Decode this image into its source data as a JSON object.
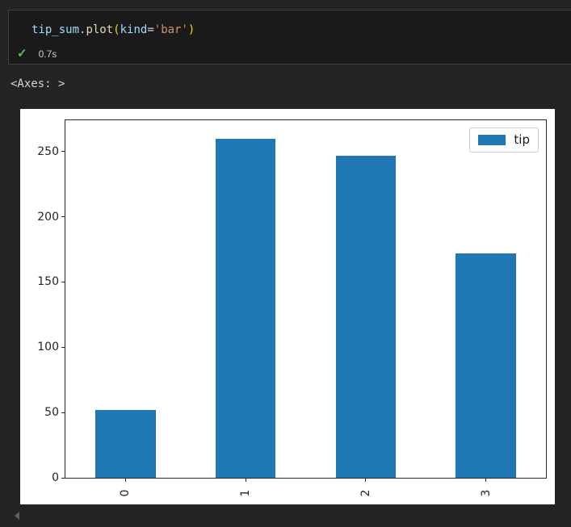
{
  "cell": {
    "code_tokens": [
      {
        "text": "tip_sum",
        "color": "#9CDCFE"
      },
      {
        "text": ".",
        "color": "#D4D4D4"
      },
      {
        "text": "plot",
        "color": "#DCDCAA"
      },
      {
        "text": "(",
        "color": "#FFD700"
      },
      {
        "text": "kind",
        "color": "#9CDCFE"
      },
      {
        "text": "=",
        "color": "#D4D4D4"
      },
      {
        "text": "'bar'",
        "color": "#CE9178"
      },
      {
        "text": ")",
        "color": "#FFD700"
      }
    ],
    "execution": {
      "check_glyph": "✓",
      "check_color": "#53c04f",
      "duration": "0.7s"
    }
  },
  "output_text": "<Axes: >",
  "chart_data": {
    "type": "bar",
    "title": "",
    "xlabel": "",
    "ylabel": "",
    "categories": [
      "0",
      "1",
      "2",
      "3"
    ],
    "series": [
      {
        "name": "tip",
        "values": [
          52,
          260,
          247,
          172
        ]
      }
    ],
    "yticks": [
      0,
      50,
      100,
      150,
      200,
      250
    ],
    "ylim": [
      0,
      274
    ],
    "bar_color": "#1f77b4",
    "bar_width_fraction": 0.5,
    "xtick_rotation": 90,
    "grid": false,
    "legend": {
      "label": "tip",
      "position": "upper right"
    },
    "background": "#ffffff"
  }
}
